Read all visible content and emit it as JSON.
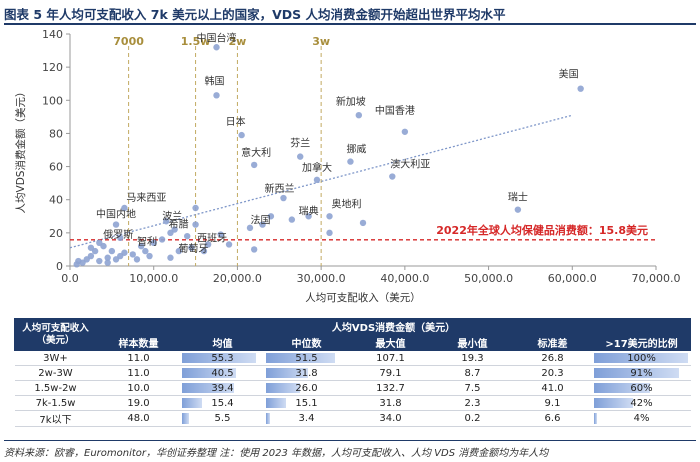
{
  "page": {
    "title": "图表 5  年人均可支配收入 7k 美元以上的国家，VDS 人均消费金额开始超出世界平均水平",
    "source": "资料来源：欧睿，Euromonitor，华创证券整理  注：使用 2023 年数据，人均可支配收入、人均 VDS 消费金额均为年人均"
  },
  "chart_data": {
    "type": "scatter",
    "xlabel": "人均可支配收入（美元）",
    "ylabel": "人均VDS消费金额（美元）",
    "xlim": [
      0,
      70000
    ],
    "ylim": [
      0,
      140
    ],
    "x_ticks": [
      "0.0",
      "10,000.0",
      "20,000.0",
      "30,000.0",
      "40,000.0",
      "50,000.0",
      "60,000.0",
      "70,000.0"
    ],
    "y_ticks": [
      "0",
      "20",
      "40",
      "60",
      "80",
      "100",
      "120",
      "140"
    ],
    "x_tick_values": [
      0,
      10000,
      20000,
      30000,
      40000,
      50000,
      60000,
      70000
    ],
    "y_tick_values": [
      0,
      20,
      40,
      60,
      80,
      100,
      120,
      140
    ],
    "threshold_lines": [
      {
        "label": "7000",
        "x": 7000
      },
      {
        "label": "1.5w",
        "x": 15000
      },
      {
        "label": "2w",
        "x": 20000
      },
      {
        "label": "3w",
        "x": 30000
      }
    ],
    "reference_line": {
      "label": "2022年全球人均保健品消费额：15.8美元",
      "y": 15.8
    },
    "trendline": {
      "x": [
        0,
        60000
      ],
      "y": [
        11,
        91
      ]
    },
    "points": [
      {
        "name": "中国台湾",
        "x": 17500,
        "y": 132
      },
      {
        "name": "韩国",
        "x": 17500,
        "y": 103
      },
      {
        "name": "美国",
        "x": 61000,
        "y": 107
      },
      {
        "name": "新加坡",
        "x": 34500,
        "y": 91
      },
      {
        "name": "中国香港",
        "x": 40000,
        "y": 81
      },
      {
        "name": "日本",
        "x": 20500,
        "y": 79
      },
      {
        "name": "芬兰",
        "x": 27500,
        "y": 66
      },
      {
        "name": "挪威",
        "x": 33500,
        "y": 63
      },
      {
        "name": "意大利",
        "x": 22000,
        "y": 61
      },
      {
        "name": "加拿大",
        "x": 29500,
        "y": 52
      },
      {
        "name": "澳大利亚",
        "x": 38500,
        "y": 54
      },
      {
        "name": "新西兰",
        "x": 25500,
        "y": 41
      },
      {
        "name": "马来西亚",
        "x": 6500,
        "y": 35
      },
      {
        "name": "瑞典",
        "x": 28500,
        "y": 30
      },
      {
        "name": "奥地利",
        "x": 31000,
        "y": 30
      },
      {
        "name": "中国内地",
        "x": 5500,
        "y": 25
      },
      {
        "name": "波兰",
        "x": 11500,
        "y": 27
      },
      {
        "name": "希腊",
        "x": 12500,
        "y": 22
      },
      {
        "name": "俄罗斯",
        "x": 6000,
        "y": 17
      },
      {
        "name": "法国",
        "x": 23000,
        "y": 25
      },
      {
        "name": "瑞士",
        "x": 53500,
        "y": 34
      },
      {
        "name": "西班牙",
        "x": 16500,
        "y": 13
      },
      {
        "name": "葡萄牙",
        "x": 14500,
        "y": 11
      },
      {
        "name": "智利",
        "x": 8500,
        "y": 12
      },
      {
        "name": "",
        "x": 31000,
        "y": 20
      },
      {
        "name": "",
        "x": 26500,
        "y": 28
      },
      {
        "name": "",
        "x": 35000,
        "y": 26
      },
      {
        "name": "",
        "x": 24000,
        "y": 30
      },
      {
        "name": "",
        "x": 15000,
        "y": 35
      },
      {
        "name": "",
        "x": 15000,
        "y": 25
      },
      {
        "name": "",
        "x": 14000,
        "y": 18
      },
      {
        "name": "",
        "x": 12000,
        "y": 20
      },
      {
        "name": "",
        "x": 11000,
        "y": 16
      },
      {
        "name": "",
        "x": 18000,
        "y": 19
      },
      {
        "name": "",
        "x": 19000,
        "y": 13
      },
      {
        "name": "",
        "x": 21500,
        "y": 23
      },
      {
        "name": "",
        "x": 22000,
        "y": 10
      },
      {
        "name": "",
        "x": 16000,
        "y": 9
      },
      {
        "name": "",
        "x": 10000,
        "y": 14
      },
      {
        "name": "",
        "x": 9000,
        "y": 9
      },
      {
        "name": "",
        "x": 7500,
        "y": 7
      },
      {
        "name": "",
        "x": 6500,
        "y": 8
      },
      {
        "name": "",
        "x": 5000,
        "y": 9
      },
      {
        "name": "",
        "x": 4500,
        "y": 5
      },
      {
        "name": "",
        "x": 4000,
        "y": 12
      },
      {
        "name": "",
        "x": 3000,
        "y": 9
      },
      {
        "name": "",
        "x": 2500,
        "y": 6
      },
      {
        "name": "",
        "x": 2000,
        "y": 4
      },
      {
        "name": "",
        "x": 1500,
        "y": 2
      },
      {
        "name": "",
        "x": 1000,
        "y": 3
      },
      {
        "name": "",
        "x": 800,
        "y": 1
      },
      {
        "name": "",
        "x": 3500,
        "y": 3
      },
      {
        "name": "",
        "x": 5500,
        "y": 4
      },
      {
        "name": "",
        "x": 6000,
        "y": 6
      },
      {
        "name": "",
        "x": 8000,
        "y": 4
      },
      {
        "name": "",
        "x": 9500,
        "y": 6
      },
      {
        "name": "",
        "x": 2500,
        "y": 11
      },
      {
        "name": "",
        "x": 3500,
        "y": 14
      },
      {
        "name": "",
        "x": 12000,
        "y": 5
      },
      {
        "name": "",
        "x": 13000,
        "y": 9
      },
      {
        "name": "",
        "x": 4500,
        "y": 2
      }
    ]
  },
  "table": {
    "group_header": "人均VDS消费金额（美元）",
    "corner_header": "人均可支配收入（美元）",
    "columns": [
      "样本数量",
      "均值",
      "中位数",
      "最大值",
      "最小值",
      "标准差",
      ">17美元的比例"
    ],
    "rows": [
      {
        "income": "3W+",
        "count": "11.0",
        "mean": "55.3",
        "mean_v": 55.3,
        "median": "51.5",
        "median_v": 51.5,
        "max": "107.1",
        "min": "19.3",
        "std": "26.8",
        "ratio": "100%",
        "ratio_v": 1.0
      },
      {
        "income": "2w-3W",
        "count": "11.0",
        "mean": "40.5",
        "mean_v": 40.5,
        "median": "31.8",
        "median_v": 31.8,
        "max": "79.1",
        "min": "8.7",
        "std": "20.3",
        "ratio": "91%",
        "ratio_v": 0.91
      },
      {
        "income": "1.5w-2w",
        "count": "10.0",
        "mean": "39.4",
        "mean_v": 39.4,
        "median": "26.0",
        "median_v": 26.0,
        "max": "132.7",
        "min": "7.5",
        "std": "41.0",
        "ratio": "60%",
        "ratio_v": 0.6
      },
      {
        "income": "7k-1.5w",
        "count": "19.0",
        "mean": "15.4",
        "mean_v": 15.4,
        "median": "15.1",
        "median_v": 15.1,
        "max": "31.8",
        "min": "2.3",
        "std": "9.1",
        "ratio": "42%",
        "ratio_v": 0.42
      },
      {
        "income": "7k以下",
        "count": "48.0",
        "mean": "5.5",
        "mean_v": 5.5,
        "median": "3.4",
        "median_v": 3.4,
        "max": "34.0",
        "min": "0.2",
        "std": "6.6",
        "ratio": "4%",
        "ratio_v": 0.04
      }
    ]
  }
}
